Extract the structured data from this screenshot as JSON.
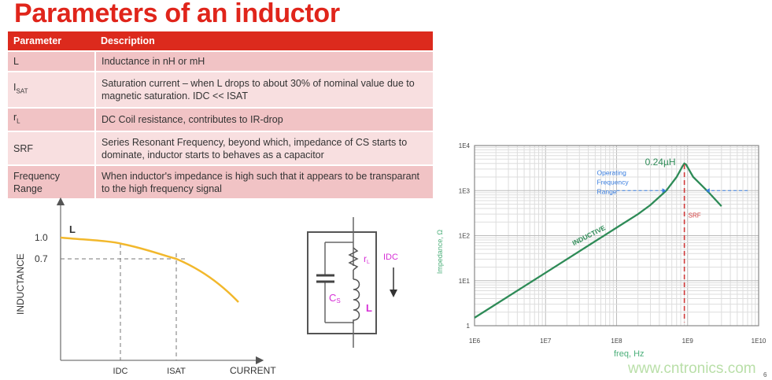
{
  "title": "Parameters of an inductor",
  "table": {
    "headers": [
      "Parameter",
      "Description"
    ],
    "rows": [
      {
        "param": "L",
        "param_sub": "",
        "desc": "Inductance in nH or mH",
        "desc2": ""
      },
      {
        "param": "I",
        "param_sub": "SAT",
        "desc": "Saturation current – when L drops to about 30% of nominal value due to magnetic saturation. I",
        "desc2": "DC << ISAT"
      },
      {
        "param": "r",
        "param_sub": "L",
        "desc": "DC Coil resistance, contributes to IR-drop",
        "desc2": ""
      },
      {
        "param": "SRF",
        "param_sub": "",
        "desc": "Series Resonant Frequency, beyond which, impedance of CS starts to dominate, inductor starts to behaves as a capacitor",
        "desc2": ""
      },
      {
        "param": "Frequency Range",
        "param_sub": "",
        "desc": "When inductor's impedance is high such that it appears to be transparant to the high frequency signal",
        "desc2": ""
      }
    ]
  },
  "inductance_chart": {
    "ylabel": "INDUCTANCE",
    "xlabel": "CURRENT",
    "curve_label": "L",
    "y_ticks": [
      "1.0",
      "0.7"
    ],
    "x_ticks": [
      "IDC",
      "ISAT"
    ],
    "color": "#f2b82c"
  },
  "circuit": {
    "labels": {
      "rL": "rL",
      "cs": "CS",
      "l": "L",
      "idc": "IDC"
    },
    "label_color": "#d62fd6"
  },
  "chart_data": {
    "type": "line",
    "xscale": "log",
    "yscale": "log",
    "xlim": [
      1000000,
      10000000000
    ],
    "ylim": [
      1,
      10000
    ],
    "grid": true,
    "xlabel": "freq, Hz",
    "ylabel": "Impedance, Ω",
    "x_ticks": [
      "1E6",
      "1E7",
      "1E8",
      "1E9",
      "1E10"
    ],
    "y_ticks": [
      "1",
      "1E1",
      "1E2",
      "1E3",
      "1E4"
    ],
    "series": [
      {
        "color": "#2e8b57",
        "x": [
          1000000,
          10000000,
          100000000,
          200000000,
          300000000,
          500000000,
          700000000,
          850000000,
          900000000,
          950000000,
          1200000000,
          2000000000,
          3000000000
        ],
        "y": [
          1.5,
          15,
          150,
          300,
          480,
          1000,
          2000,
          3500,
          4000,
          3800,
          2000,
          900,
          450
        ]
      }
    ],
    "annotations": {
      "peak_label": "0.24µH",
      "inductive_label": "INDUCTIVE",
      "srf_label": "SRF",
      "srf_x": 900000000,
      "operating_label": [
        "Operating",
        "Frequency",
        "Range"
      ],
      "operating_level": 1000
    },
    "colors": {
      "srf": "#d03a3a",
      "operating": "#3b7fe0",
      "axis_label": "#4caf7a"
    }
  },
  "watermark": "www.cntronics.com",
  "page_number": "6"
}
